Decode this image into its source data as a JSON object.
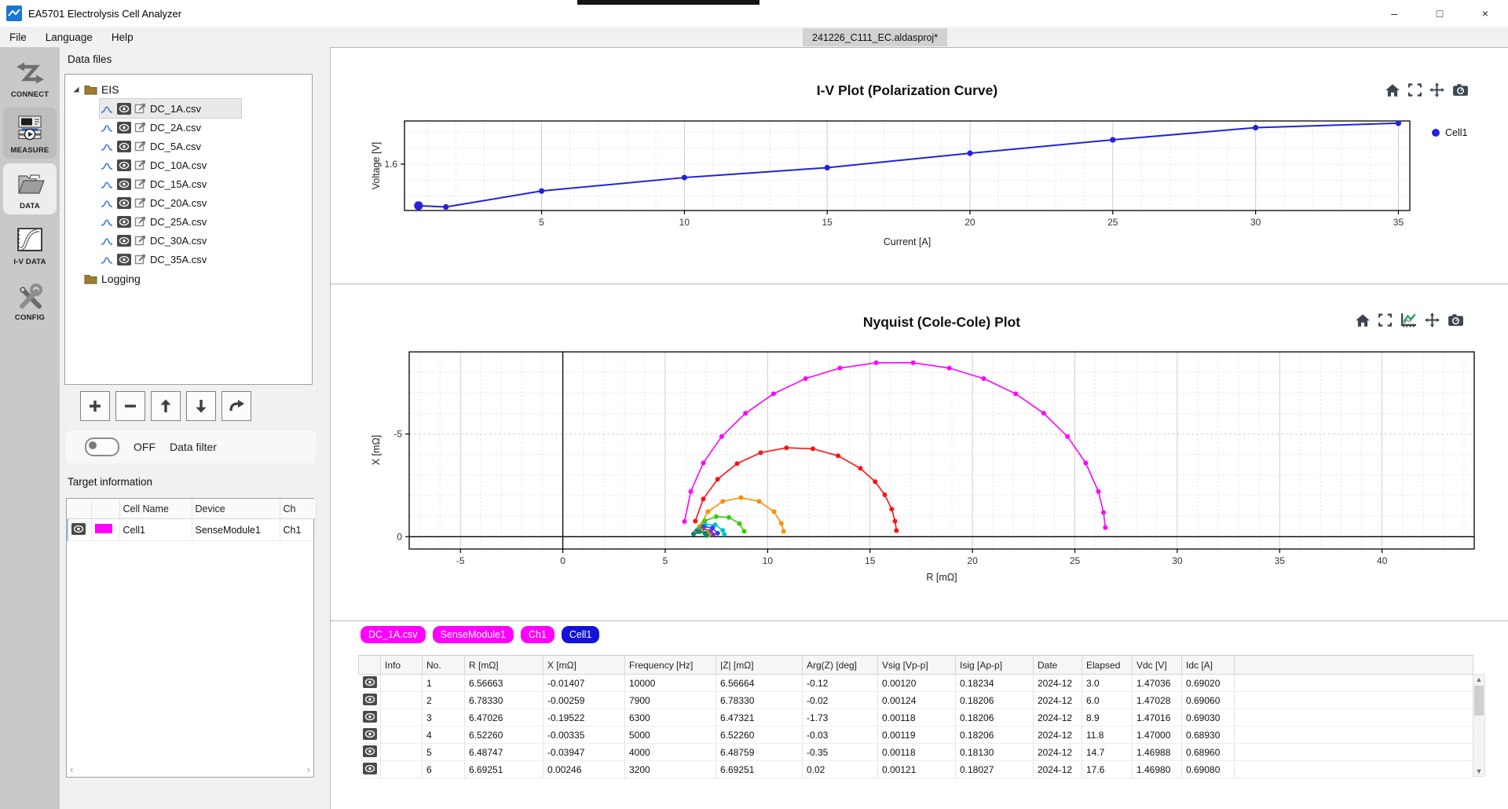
{
  "window": {
    "title": "EA5701 Electrolysis Cell Analyzer",
    "controls": {
      "minimize": "–",
      "maximize": "□",
      "close": "×"
    }
  },
  "menu": {
    "items": [
      "File",
      "Language",
      "Help"
    ]
  },
  "project_tab": "241226_C111_EC.aldasproj*",
  "sidebar": {
    "items": [
      {
        "id": "connect",
        "label": "CONNECT",
        "active": false
      },
      {
        "id": "measure",
        "label": "MEASURE",
        "active": false
      },
      {
        "id": "data",
        "label": "DATA",
        "active": true
      },
      {
        "id": "iv-data",
        "label": "I-V DATA",
        "active": false
      },
      {
        "id": "config",
        "label": "CONFIG",
        "active": false
      }
    ]
  },
  "data_files": {
    "label": "Data files",
    "folders": [
      {
        "name": "EIS",
        "expanded": true,
        "files": [
          "DC_1A.csv",
          "DC_2A.csv",
          "DC_5A.csv",
          "DC_10A.csv",
          "DC_15A.csv",
          "DC_20A.csv",
          "DC_25A.csv",
          "DC_30A.csv",
          "DC_35A.csv"
        ]
      },
      {
        "name": "Logging",
        "expanded": false,
        "files": []
      }
    ],
    "selected_file": "DC_1A.csv"
  },
  "data_filter": {
    "state": "OFF",
    "label": "Data filter"
  },
  "target_information": {
    "label": "Target information",
    "columns": [
      "",
      "",
      "Cell Name",
      "Device",
      "Ch"
    ],
    "rows": [
      {
        "color": "#ff00ff",
        "cell_name": "Cell1",
        "device": "SenseModule1",
        "ch": "Ch1"
      }
    ]
  },
  "detail": {
    "tags": [
      {
        "label": "DC_1A.csv",
        "color": "#ff00ff"
      },
      {
        "label": "SenseModule1",
        "color": "#ff00ff"
      },
      {
        "label": "Ch1",
        "color": "#ff00ff"
      },
      {
        "label": "Cell1",
        "color": "#1414d8"
      }
    ],
    "table": {
      "columns": [
        "",
        "Info",
        "No.",
        "R [mΩ]",
        "X [mΩ]",
        "Frequency [Hz]",
        "|Z| [mΩ]",
        "Arg(Z) [deg]",
        "Vsig [Vp-p]",
        "Isig [Ap-p]",
        "Date",
        "Elapsed",
        "Vdc [V]",
        "Idc [A]",
        ""
      ],
      "rows": [
        [
          "",
          "1",
          "6.56663",
          "-0.01407",
          "10000",
          "6.56664",
          "-0.12",
          "0.00120",
          "0.18234",
          "2024-12",
          "3.0",
          "1.47036",
          "0.69020"
        ],
        [
          "",
          "2",
          "6.78330",
          "-0.00259",
          "7900",
          "6.78330",
          "-0.02",
          "0.00124",
          "0.18206",
          "2024-12",
          "6.0",
          "1.47028",
          "0.69060"
        ],
        [
          "",
          "3",
          "6.47026",
          "-0.19522",
          "6300",
          "6.47321",
          "-1.73",
          "0.00118",
          "0.18206",
          "2024-12",
          "8.9",
          "1.47016",
          "0.69030"
        ],
        [
          "",
          "4",
          "6.52260",
          "-0.00335",
          "5000",
          "6.52260",
          "-0.03",
          "0.00119",
          "0.18206",
          "2024-12",
          "11.8",
          "1.47000",
          "0.68930"
        ],
        [
          "",
          "5",
          "6.48747",
          "-0.03947",
          "4000",
          "6.48759",
          "-0.35",
          "0.00118",
          "0.18130",
          "2024-12",
          "14.7",
          "1.46988",
          "0.68960"
        ],
        [
          "",
          "6",
          "6.69251",
          "0.00246",
          "3200",
          "6.69251",
          "0.02",
          "0.00121",
          "0.18027",
          "2024-12",
          "17.6",
          "1.46980",
          "0.69080"
        ]
      ]
    }
  },
  "chart_data": [
    {
      "type": "line",
      "title": "I-V Plot (Polarization Curve)",
      "xlabel": "Current [A]",
      "ylabel": "Voltage [V]",
      "xlim": [
        0.2,
        35.4
      ],
      "ylim": [
        1.735,
        1.455
      ],
      "xticks": [
        5,
        10,
        15,
        20,
        25,
        30,
        35
      ],
      "yticks": [
        1.6
      ],
      "x_minor_step": 1,
      "y_minor_step": 0.05,
      "grid": true,
      "legend_position": "right",
      "series": [
        {
          "name": "Cell1",
          "color": "#2222dd",
          "big_first": true,
          "x": [
            0.69,
            1.65,
            5,
            10,
            15,
            20,
            25,
            30,
            35
          ],
          "y": [
            1.47,
            1.466,
            1.516,
            1.558,
            1.589,
            1.634,
            1.676,
            1.714,
            1.728
          ]
        }
      ]
    },
    {
      "type": "scatter-line",
      "title": "Nyquist (Cole-Cole) Plot",
      "xlabel": "R [mΩ]",
      "ylabel": "X [mΩ]",
      "xlim": [
        -7.5,
        44.5
      ],
      "ylim": [
        -9.0,
        0.6
      ],
      "xticks": [
        -5,
        0,
        5,
        10,
        15,
        20,
        25,
        30,
        35,
        40
      ],
      "yticks": [
        -5,
        0
      ],
      "y_major": [
        -5
      ],
      "x_minor_step": 1,
      "y_minor_step": 1,
      "grid": true,
      "zero_lines": true,
      "series": [
        {
          "name": "DC_1A.csv",
          "color": "#ff00ff",
          "x": [
            5.94,
            6.25,
            6.86,
            7.76,
            8.92,
            10.29,
            11.85,
            13.53,
            15.3,
            17.1,
            18.87,
            20.55,
            22.11,
            23.48,
            24.64,
            25.53,
            26.15,
            26.4,
            26.49
          ],
          "y": [
            -0.74,
            -2.2,
            -3.59,
            -4.88,
            -6.01,
            -6.96,
            -7.7,
            -8.21,
            -8.47,
            -8.47,
            -8.21,
            -7.7,
            -6.96,
            -6.01,
            -4.88,
            -3.59,
            -2.2,
            -1.18,
            -0.44
          ]
        },
        {
          "name": "DC_2A.csv",
          "color": "#ff1111",
          "x": [
            6.47,
            6.86,
            7.56,
            8.51,
            9.66,
            10.92,
            12.21,
            13.44,
            14.53,
            15.25,
            15.72,
            16.06,
            16.22,
            16.29
          ],
          "y": [
            -0.76,
            -1.84,
            -2.8,
            -3.56,
            -4.09,
            -4.33,
            -4.28,
            -3.94,
            -3.33,
            -2.68,
            -2.04,
            -1.34,
            -0.76,
            -0.3
          ]
        },
        {
          "name": "DC_5A.csv",
          "color": "#ff8c00",
          "x": [
            6.67,
            7.09,
            7.81,
            8.7,
            9.59,
            10.31,
            10.67,
            10.78
          ],
          "y": [
            -0.49,
            -1.22,
            -1.72,
            -1.9,
            -1.72,
            -1.22,
            -0.65,
            -0.26
          ]
        },
        {
          "name": "DC_10A.csv",
          "color": "#33cc00",
          "x": [
            6.57,
            6.93,
            7.49,
            8.11,
            8.62,
            8.86
          ],
          "y": [
            -0.34,
            -0.77,
            -0.98,
            -0.94,
            -0.64,
            -0.26
          ]
        },
        {
          "name": "DC_15A.csv",
          "color": "#00c2cc",
          "x": [
            6.59,
            6.96,
            7.44,
            7.81,
            7.89
          ],
          "y": [
            -0.31,
            -0.58,
            -0.58,
            -0.31,
            -0.11
          ]
        },
        {
          "name": "DC_20A.csv",
          "color": "#2244ee",
          "x": [
            6.52,
            6.87,
            7.31,
            7.56
          ],
          "y": [
            -0.25,
            -0.48,
            -0.43,
            -0.17
          ]
        },
        {
          "name": "DC_25A.csv",
          "color": "#9922cc",
          "x": [
            6.49,
            6.84,
            7.22,
            7.34
          ],
          "y": [
            -0.23,
            -0.4,
            -0.28,
            -0.1
          ]
        },
        {
          "name": "DC_30A.csv",
          "color": "#aaaa00",
          "x": [
            6.42,
            6.75,
            7.05,
            7.14
          ],
          "y": [
            -0.17,
            -0.3,
            -0.21,
            -0.08
          ]
        },
        {
          "name": "DC_35A.csv",
          "color": "#008877",
          "x": [
            6.38,
            6.66,
            6.94,
            7.02
          ],
          "y": [
            -0.13,
            -0.24,
            -0.16,
            -0.06
          ]
        }
      ]
    }
  ]
}
